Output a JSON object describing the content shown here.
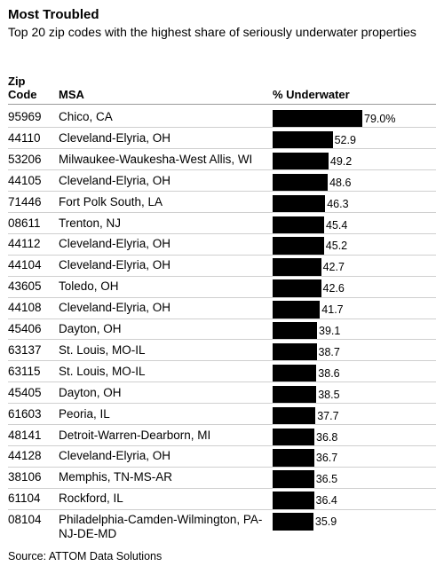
{
  "title": "Most Troubled",
  "subtitle": "Top 20 zip codes with the highest share of seriously underwater properties",
  "headers": {
    "zip": "Zip\nCode",
    "zip_line1": "Zip",
    "zip_line2": "Code",
    "msa": "MSA",
    "pct": "% Underwater"
  },
  "source": "Source: ATTOM Data Solutions",
  "chart_data": {
    "type": "bar",
    "orientation": "horizontal",
    "title": "Most Troubled",
    "subtitle": "Top 20 zip codes with the highest share of seriously underwater properties",
    "categories": [
      "95969",
      "44110",
      "53206",
      "44105",
      "71446",
      "08611",
      "44112",
      "44104",
      "43605",
      "44108",
      "45406",
      "63137",
      "63115",
      "45405",
      "61603",
      "48141",
      "44128",
      "38106",
      "61104",
      "08104"
    ],
    "msa": [
      "Chico, CA",
      "Cleveland-Elyria, OH",
      "Milwaukee-Waukesha-West Allis, WI",
      "Cleveland-Elyria, OH",
      "Fort Polk South, LA",
      "Trenton, NJ",
      "Cleveland-Elyria, OH",
      "Cleveland-Elyria, OH",
      "Toledo, OH",
      "Cleveland-Elyria, OH",
      "Dayton, OH",
      "St. Louis, MO-IL",
      "St. Louis, MO-IL",
      "Dayton, OH",
      "Peoria, IL",
      "Detroit-Warren-Dearborn, MI",
      "Cleveland-Elyria, OH",
      "Memphis, TN-MS-AR",
      "Rockford, IL",
      "Philadelphia-Camden-Wilmington, PA-NJ-DE-MD"
    ],
    "values": [
      79.0,
      52.9,
      49.2,
      48.6,
      46.3,
      45.4,
      45.2,
      42.7,
      42.6,
      41.7,
      39.1,
      38.7,
      38.6,
      38.5,
      37.7,
      36.8,
      36.7,
      36.5,
      36.4,
      35.9
    ],
    "value_labels": [
      "79.0%",
      "52.9",
      "49.2",
      "48.6",
      "46.3",
      "45.4",
      "45.2",
      "42.7",
      "42.6",
      "41.7",
      "39.1",
      "38.7",
      "38.6",
      "38.5",
      "37.7",
      "36.8",
      "36.7",
      "36.5",
      "36.4",
      "35.9"
    ],
    "xlim": [
      0,
      79.0
    ],
    "bar_color": "#000000",
    "grid": false,
    "legend": "none"
  }
}
